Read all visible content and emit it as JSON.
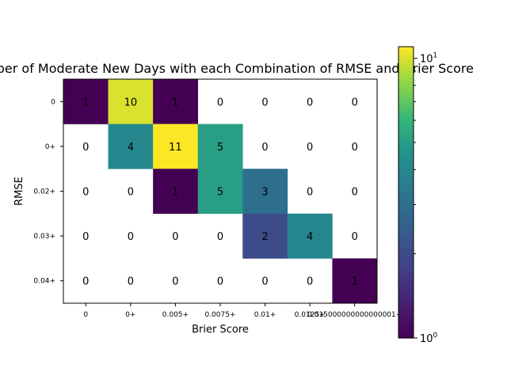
{
  "chart_data": {
    "type": "heatmap",
    "title": "Number of Moderate New Days with each Combination of RMSE and Brier Score",
    "xlabel": "Brier Score",
    "ylabel": "RMSE",
    "x_categories": [
      "0",
      "0+",
      "0.005+",
      "0.0075+",
      "0.01+",
      "0.0125+",
      "0.015000000000000001+"
    ],
    "y_categories": [
      "0",
      "0+",
      "0.02+",
      "0.03+",
      "0.04+"
    ],
    "values": [
      [
        1,
        10,
        1,
        0,
        0,
        0,
        0
      ],
      [
        0,
        4,
        11,
        5,
        0,
        0,
        0
      ],
      [
        0,
        0,
        1,
        5,
        3,
        0,
        0
      ],
      [
        0,
        0,
        0,
        0,
        2,
        4,
        0
      ],
      [
        0,
        0,
        0,
        0,
        0,
        0,
        1
      ]
    ],
    "color_scale": "log",
    "colormap": "viridis",
    "colorbar_range": [
      1,
      11
    ],
    "colorbar_labels": {
      "min_base": "10",
      "min_exp": "0",
      "max_base": "10",
      "max_exp": "1"
    },
    "masked_value": 0
  }
}
